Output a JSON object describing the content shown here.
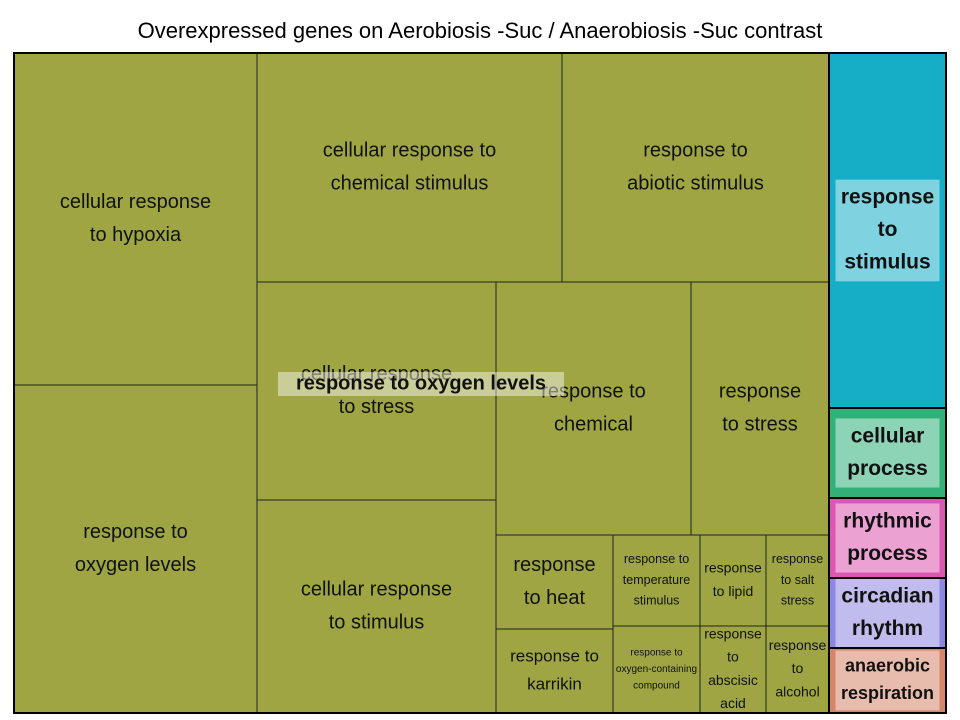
{
  "chart_data": {
    "type": "treemap",
    "title": "Overexpressed genes on Aerobiosis -Suc / Anaerobiosis -Suc contrast",
    "groups": [
      {
        "name": "response to oxygen levels",
        "color": "#9ea542",
        "tiles": [
          {
            "label": "cellular response to hypoxia"
          },
          {
            "label": "response to oxygen levels"
          },
          {
            "label": "cellular response to chemical stimulus"
          },
          {
            "label": "response to abiotic stimulus"
          },
          {
            "label": "cellular response to stress"
          },
          {
            "label": "cellular response to stimulus"
          },
          {
            "label": "response to chemical"
          },
          {
            "label": "response to stress"
          },
          {
            "label": "response to heat"
          },
          {
            "label": "response to karrikin"
          },
          {
            "label": "response to temperature stimulus"
          },
          {
            "label": "response to oxygen-containing compound"
          },
          {
            "label": "response to lipid"
          },
          {
            "label": "response to abscisic acid"
          },
          {
            "label": "response to salt stress"
          },
          {
            "label": "response to alcohol"
          }
        ]
      },
      {
        "name": "response to stimulus",
        "color": "#16adc7",
        "tiles": [
          {
            "label": "response to stimulus"
          }
        ]
      },
      {
        "name": "cellular process",
        "color": "#31b078",
        "tiles": [
          {
            "label": "cellular process"
          }
        ]
      },
      {
        "name": "rhythmic process",
        "color": "#db57b0",
        "tiles": [
          {
            "label": "rhythmic process"
          }
        ]
      },
      {
        "name": "circadian rhythm",
        "color": "#8c87e0",
        "tiles": [
          {
            "label": "circadian rhythm"
          }
        ]
      },
      {
        "name": "anaerobic respiration",
        "color": "#d5866a",
        "tiles": [
          {
            "label": "anaerobic respiration"
          }
        ]
      }
    ]
  }
}
